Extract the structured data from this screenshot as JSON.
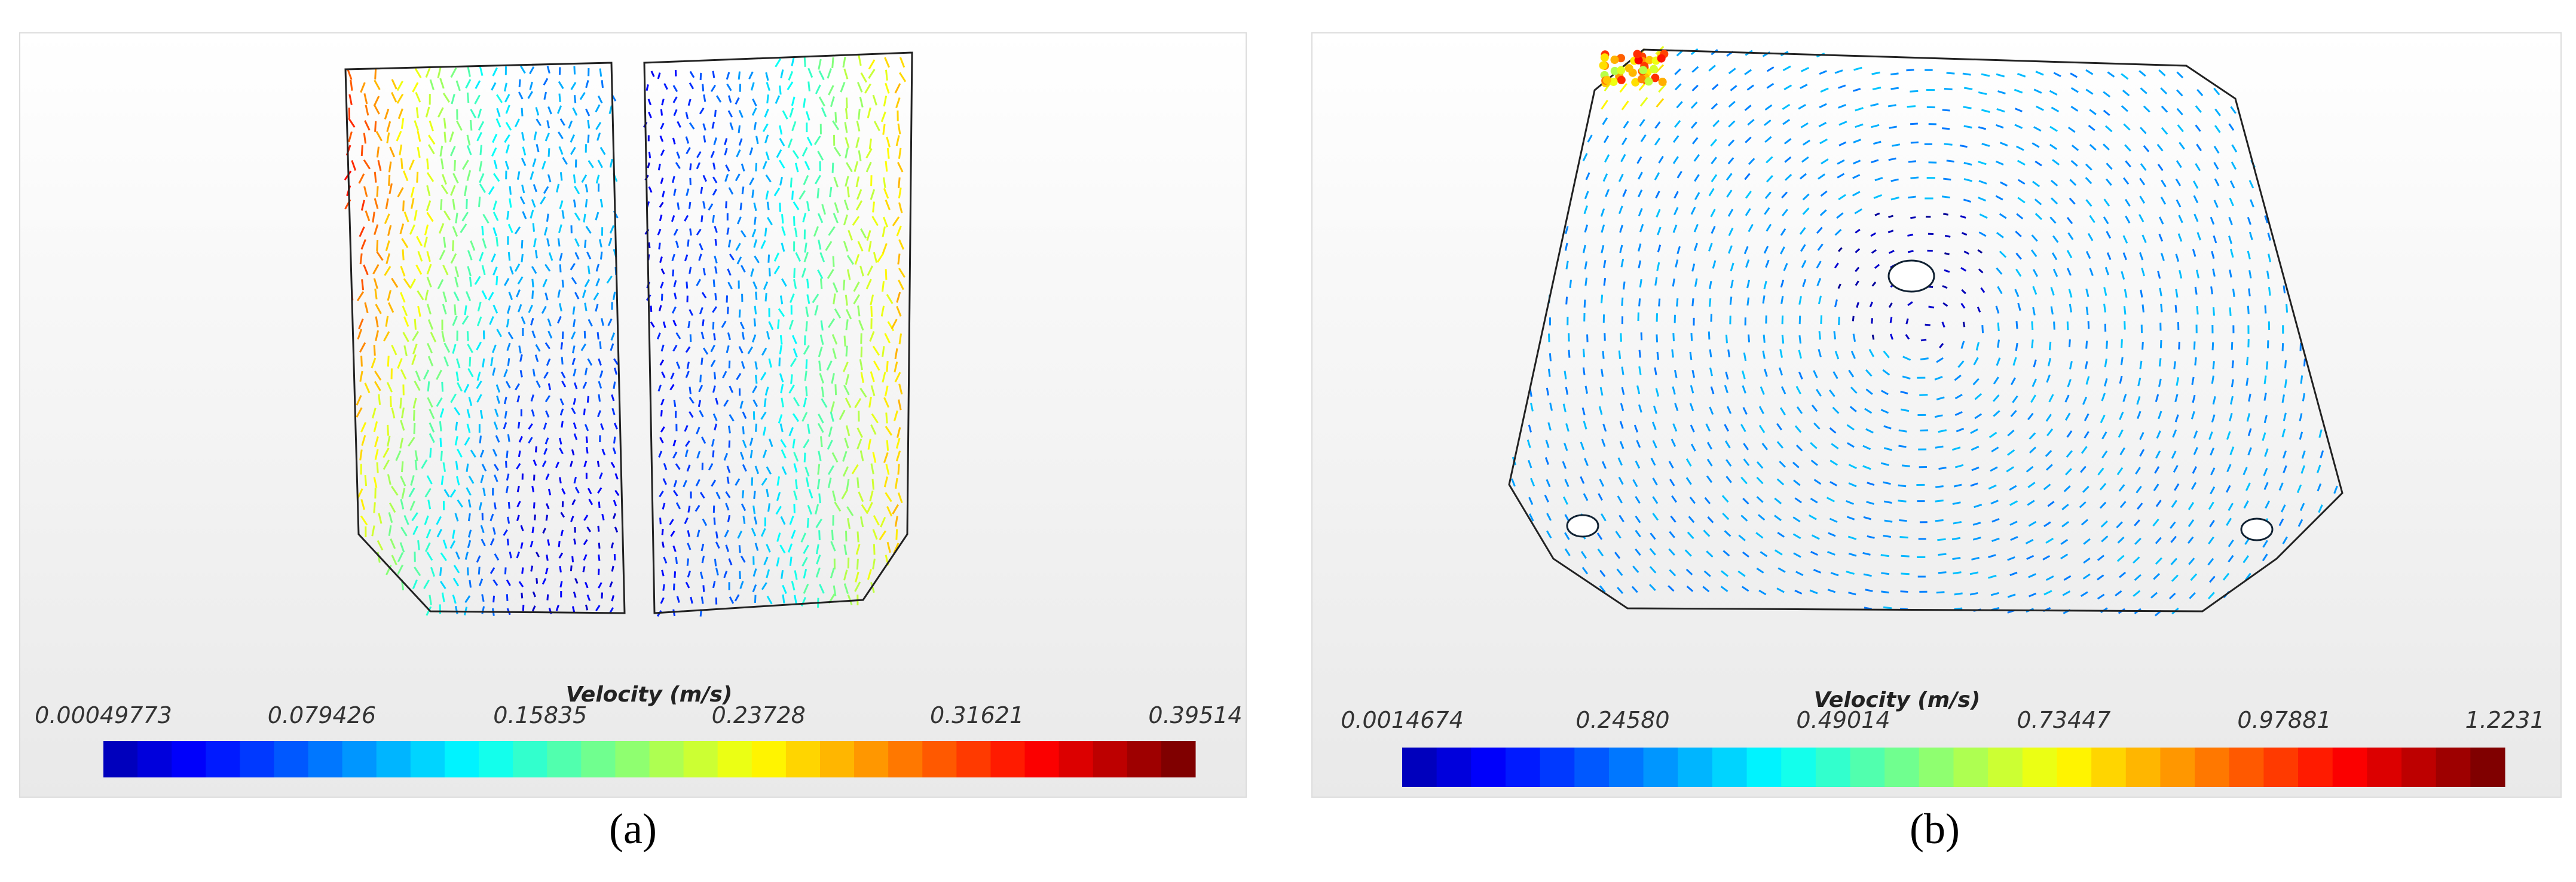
{
  "panels": [
    {
      "label": "(a)",
      "colorbar": {
        "title": "Velocity (m/s)",
        "ticks": [
          "0.00049773",
          "0.079426",
          "0.15835",
          "0.23728",
          "0.31621",
          "0.39514"
        ]
      }
    },
    {
      "label": "(b)",
      "colorbar": {
        "title": "Velocity (m/s)",
        "ticks": [
          "0.0014674",
          "0.24580",
          "0.49014",
          "0.73447",
          "0.97881",
          "1.2231"
        ]
      }
    }
  ]
}
